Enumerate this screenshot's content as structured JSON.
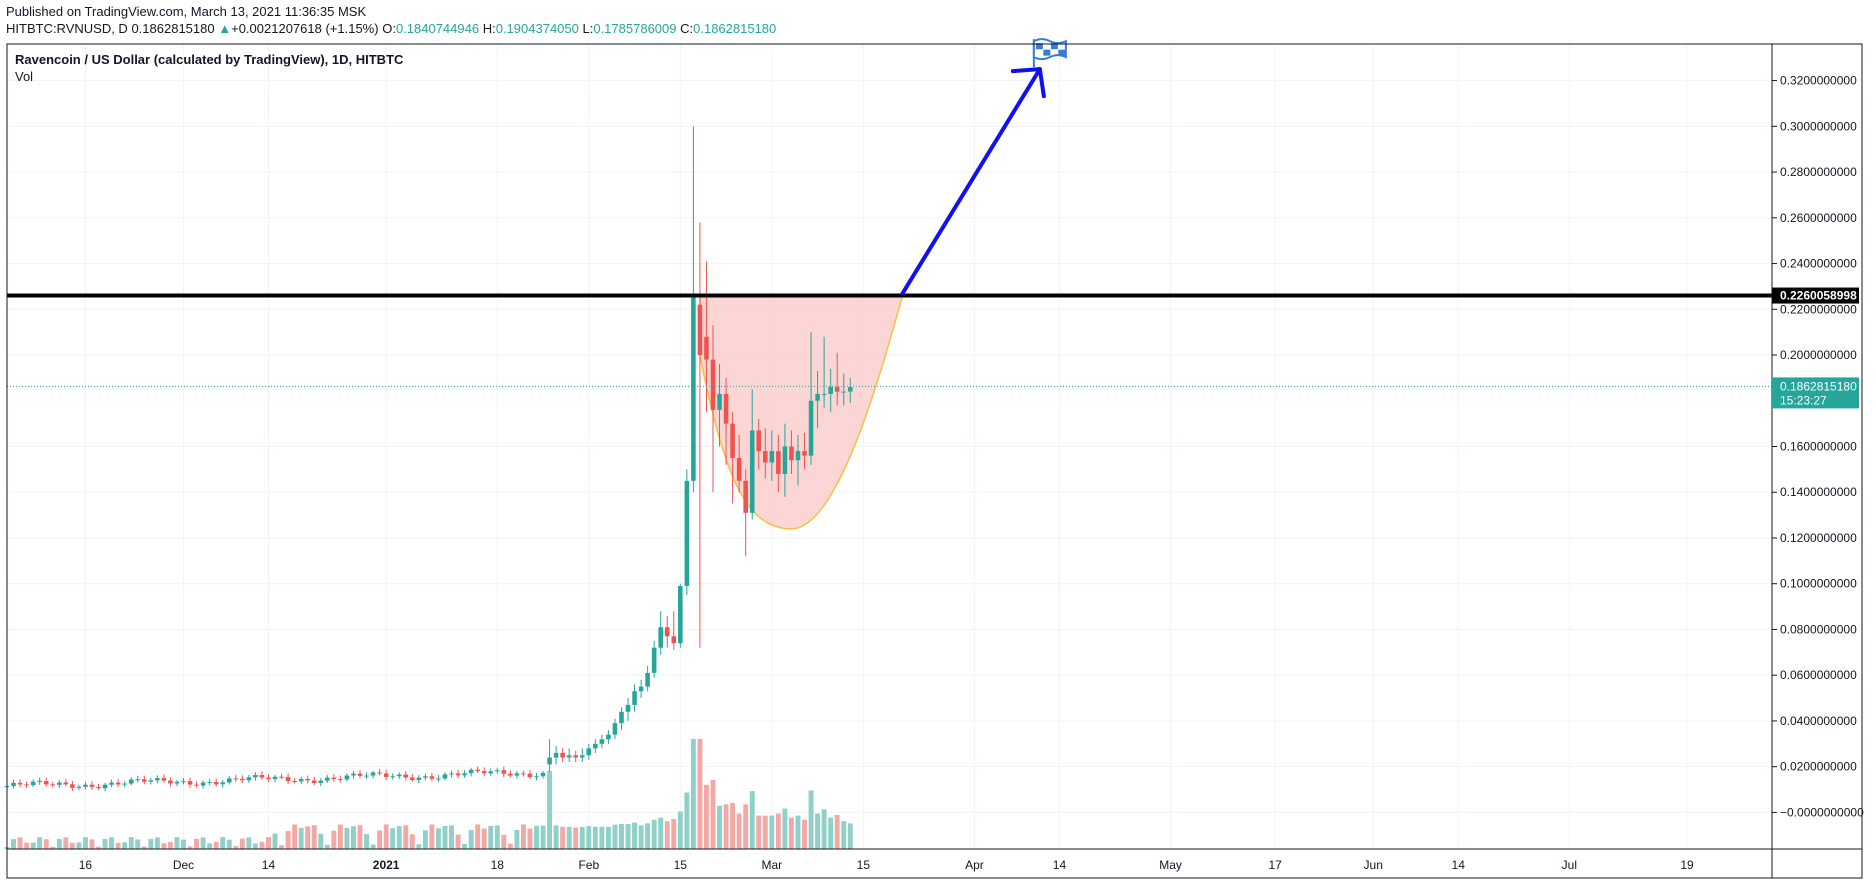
{
  "header": {
    "published": "Published on TradingView.com, March 13, 2021 11:36:35 MSK",
    "symbol": "HITBTC:RVNUSD, D",
    "last": "0.1862815180",
    "change_arrow": "▲",
    "change": "+0.0021207618 (+1.15%)",
    "o_label": "O:",
    "o_value": "0.1840744946",
    "h_label": "H:",
    "h_value": "0.1904374050",
    "l_label": "L:",
    "l_value": "0.1785786009",
    "c_label": "C:",
    "c_value": "0.1862815180"
  },
  "legend": {
    "title": "Ravencoin / US Dollar (calculated by TradingView), 1D, HITBTC",
    "vol": "Vol"
  },
  "colors": {
    "up": "#26a69a",
    "down": "#ef5350",
    "vol_up": "#8fd0c9",
    "vol_down": "#f4a8a6",
    "resistance": "#000000",
    "arrow": "#1010f0",
    "cup_fill": "#f9c8c6",
    "cup_stroke": "#f5c042",
    "flag": "#3a7bd5"
  },
  "chart_data": {
    "type": "candlestick",
    "y_ticks": [
      "0.3200000000",
      "0.3000000000",
      "0.2800000000",
      "0.2600000000",
      "0.2400000000",
      "0.2200000000",
      "0.2000000000",
      "0.1600000000",
      "0.1400000000",
      "0.1200000000",
      "0.1000000000",
      "0.0800000000",
      "0.0600000000",
      "0.0400000000",
      "0.0200000000",
      "−0.0000000000"
    ],
    "y_tick_values": [
      0.32,
      0.3,
      0.28,
      0.26,
      0.24,
      0.22,
      0.2,
      0.16,
      0.14,
      0.12,
      0.1,
      0.08,
      0.06,
      0.04,
      0.02,
      0.0
    ],
    "ylim": [
      -0.016,
      0.336
    ],
    "x_ticks": [
      "16",
      "Dec",
      "14",
      "2021",
      "18",
      "Feb",
      "15",
      "Mar",
      "15",
      "Apr",
      "14",
      "May",
      "17",
      "Jun",
      "14",
      "Jul",
      "19"
    ],
    "x_tick_dates": [
      "2020-11-16",
      "2020-12-01",
      "2020-12-14",
      "2021-01-01",
      "2021-01-18",
      "2021-02-01",
      "2021-02-15",
      "2021-03-01",
      "2021-03-15",
      "2021-04-01",
      "2021-04-14",
      "2021-05-01",
      "2021-05-17",
      "2021-06-01",
      "2021-06-14",
      "2021-07-01",
      "2021-07-19"
    ],
    "x_range": [
      "2020-11-04",
      "2021-08-01"
    ],
    "resistance_value": "0.2260058998",
    "resistance": 0.2260058998,
    "last_price_label": "0.1862815180",
    "last_price": 0.186281518,
    "countdown": "15:23:27",
    "candles": [
      {
        "d": "2021-01-26",
        "o": 0.021,
        "h": 0.032,
        "l": 0.018,
        "c": 0.024
      },
      {
        "d": "2021-01-27",
        "o": 0.024,
        "h": 0.029,
        "l": 0.021,
        "c": 0.026
      },
      {
        "d": "2021-01-28",
        "o": 0.026,
        "h": 0.028,
        "l": 0.022,
        "c": 0.024
      },
      {
        "d": "2021-01-29",
        "o": 0.024,
        "h": 0.028,
        "l": 0.022,
        "c": 0.025
      },
      {
        "d": "2021-01-30",
        "o": 0.025,
        "h": 0.027,
        "l": 0.022,
        "c": 0.024
      },
      {
        "d": "2021-01-31",
        "o": 0.024,
        "h": 0.028,
        "l": 0.022,
        "c": 0.025
      },
      {
        "d": "2021-02-01",
        "o": 0.025,
        "h": 0.03,
        "l": 0.023,
        "c": 0.028
      },
      {
        "d": "2021-02-02",
        "o": 0.028,
        "h": 0.032,
        "l": 0.026,
        "c": 0.03
      },
      {
        "d": "2021-02-03",
        "o": 0.03,
        "h": 0.034,
        "l": 0.028,
        "c": 0.032
      },
      {
        "d": "2021-02-04",
        "o": 0.032,
        "h": 0.036,
        "l": 0.03,
        "c": 0.034
      },
      {
        "d": "2021-02-05",
        "o": 0.034,
        "h": 0.041,
        "l": 0.032,
        "c": 0.039
      },
      {
        "d": "2021-02-06",
        "o": 0.039,
        "h": 0.046,
        "l": 0.036,
        "c": 0.044
      },
      {
        "d": "2021-02-07",
        "o": 0.044,
        "h": 0.05,
        "l": 0.04,
        "c": 0.047
      },
      {
        "d": "2021-02-08",
        "o": 0.047,
        "h": 0.056,
        "l": 0.044,
        "c": 0.053
      },
      {
        "d": "2021-02-09",
        "o": 0.053,
        "h": 0.058,
        "l": 0.05,
        "c": 0.055
      },
      {
        "d": "2021-02-10",
        "o": 0.055,
        "h": 0.064,
        "l": 0.053,
        "c": 0.061
      },
      {
        "d": "2021-02-11",
        "o": 0.061,
        "h": 0.075,
        "l": 0.059,
        "c": 0.072
      },
      {
        "d": "2021-02-12",
        "o": 0.072,
        "h": 0.088,
        "l": 0.069,
        "c": 0.081
      },
      {
        "d": "2021-02-13",
        "o": 0.081,
        "h": 0.086,
        "l": 0.072,
        "c": 0.077
      },
      {
        "d": "2021-02-14",
        "o": 0.077,
        "h": 0.088,
        "l": 0.071,
        "c": 0.074
      },
      {
        "d": "2021-02-15",
        "o": 0.074,
        "h": 0.1,
        "l": 0.072,
        "c": 0.099
      },
      {
        "d": "2021-02-16",
        "o": 0.099,
        "h": 0.15,
        "l": 0.095,
        "c": 0.145
      },
      {
        "d": "2021-02-17",
        "o": 0.145,
        "h": 0.3,
        "l": 0.14,
        "c": 0.226
      },
      {
        "d": "2021-02-18",
        "o": 0.222,
        "h": 0.258,
        "l": 0.072,
        "c": 0.2
      },
      {
        "d": "2021-02-19",
        "o": 0.208,
        "h": 0.241,
        "l": 0.175,
        "c": 0.198
      },
      {
        "d": "2021-02-20",
        "o": 0.198,
        "h": 0.213,
        "l": 0.14,
        "c": 0.176
      },
      {
        "d": "2021-02-21",
        "o": 0.176,
        "h": 0.196,
        "l": 0.16,
        "c": 0.183
      },
      {
        "d": "2021-02-22",
        "o": 0.183,
        "h": 0.19,
        "l": 0.152,
        "c": 0.17
      },
      {
        "d": "2021-02-23",
        "o": 0.17,
        "h": 0.175,
        "l": 0.135,
        "c": 0.155
      },
      {
        "d": "2021-02-24",
        "o": 0.155,
        "h": 0.165,
        "l": 0.14,
        "c": 0.145
      },
      {
        "d": "2021-02-25",
        "o": 0.145,
        "h": 0.15,
        "l": 0.112,
        "c": 0.131
      },
      {
        "d": "2021-02-26",
        "o": 0.131,
        "h": 0.185,
        "l": 0.128,
        "c": 0.167
      },
      {
        "d": "2021-02-27",
        "o": 0.167,
        "h": 0.172,
        "l": 0.15,
        "c": 0.158
      },
      {
        "d": "2021-02-28",
        "o": 0.158,
        "h": 0.168,
        "l": 0.146,
        "c": 0.153
      },
      {
        "d": "2021-03-01",
        "o": 0.153,
        "h": 0.167,
        "l": 0.145,
        "c": 0.158
      },
      {
        "d": "2021-03-02",
        "o": 0.158,
        "h": 0.165,
        "l": 0.14,
        "c": 0.148
      },
      {
        "d": "2021-03-03",
        "o": 0.148,
        "h": 0.17,
        "l": 0.138,
        "c": 0.16
      },
      {
        "d": "2021-03-04",
        "o": 0.16,
        "h": 0.167,
        "l": 0.148,
        "c": 0.154
      },
      {
        "d": "2021-03-05",
        "o": 0.154,
        "h": 0.165,
        "l": 0.143,
        "c": 0.158
      },
      {
        "d": "2021-03-06",
        "o": 0.158,
        "h": 0.166,
        "l": 0.15,
        "c": 0.156
      },
      {
        "d": "2021-03-07",
        "o": 0.156,
        "h": 0.21,
        "l": 0.152,
        "c": 0.18
      },
      {
        "d": "2021-03-08",
        "o": 0.18,
        "h": 0.193,
        "l": 0.168,
        "c": 0.183
      },
      {
        "d": "2021-03-09",
        "o": 0.183,
        "h": 0.208,
        "l": 0.177,
        "c": 0.183
      },
      {
        "d": "2021-03-10",
        "o": 0.183,
        "h": 0.194,
        "l": 0.175,
        "c": 0.186
      },
      {
        "d": "2021-03-11",
        "o": 0.186,
        "h": 0.201,
        "l": 0.178,
        "c": 0.184
      },
      {
        "d": "2021-03-12",
        "o": 0.184,
        "h": 0.192,
        "l": 0.178,
        "c": 0.184
      },
      {
        "d": "2021-03-13",
        "o": 0.184,
        "h": 0.19,
        "l": 0.179,
        "c": 0.186
      }
    ],
    "pre_rally_range": {
      "start": "2020-11-04",
      "end": "2021-01-25",
      "start_price": 0.0115,
      "end_price": 0.0175
    },
    "cup_pattern": {
      "left_date": "2021-02-18",
      "right_date": "2021-03-21",
      "top": 0.226,
      "bottom_date": "2021-03-04",
      "bottom": 0.124
    },
    "projection_arrow": {
      "from_date": "2021-03-21",
      "from": 0.227,
      "to_date": "2021-04-11",
      "to": 0.325
    }
  }
}
